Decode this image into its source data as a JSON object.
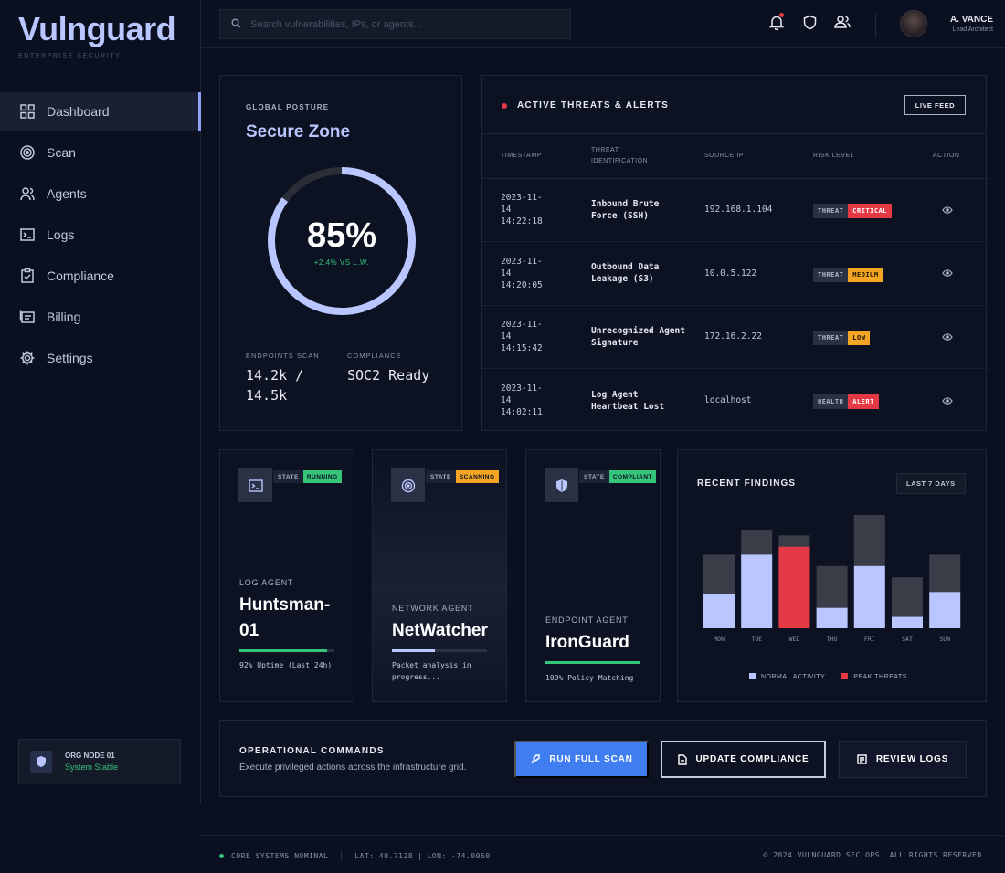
{
  "brand": {
    "name": "Vulnguard",
    "tagline": "ENTERPRISE SECURITY"
  },
  "sidebar": {
    "items": [
      {
        "label": "Dashboard",
        "icon": "grid-icon",
        "active": true
      },
      {
        "label": "Scan",
        "icon": "radar-icon"
      },
      {
        "label": "Agents",
        "icon": "agents-icon"
      },
      {
        "label": "Logs",
        "icon": "terminal-icon"
      },
      {
        "label": "Compliance",
        "icon": "clipboard-check-icon"
      },
      {
        "label": "Billing",
        "icon": "billing-icon"
      },
      {
        "label": "Settings",
        "icon": "gear-icon"
      }
    ],
    "node": {
      "title": "ORG NODE 01",
      "status": "System Stable"
    }
  },
  "topbar": {
    "search_placeholder": "Search vulnerabilities, IPs, or agents...",
    "user": {
      "name": "A. VANCE",
      "role": "Lead Architect"
    }
  },
  "posture": {
    "label": "GLOBAL POSTURE",
    "title": "Secure Zone",
    "score": "85%",
    "score_fraction": 0.85,
    "delta": "+2.4% VS L.W.",
    "endpoints_label": "ENDPOINTS SCAN",
    "endpoints_value_line1": "14.2k /",
    "endpoints_value_line2": "14.5k",
    "compliance_label": "COMPLIANCE",
    "compliance_value": "SOC2 Ready"
  },
  "threats": {
    "title": "ACTIVE THREATS & ALERTS",
    "live_feed": "LIVE FEED",
    "columns": [
      "TIMESTAMP",
      "THREAT IDENTIFICATION",
      "SOURCE IP",
      "RISK LEVEL",
      "ACTION"
    ],
    "rows": [
      {
        "date": "2023-11-",
        "day": "14",
        "time": "14:22:18",
        "threat": "Inbound Brute Force (SSH)",
        "ip": "192.168.1.104",
        "kind": "THREAT",
        "level": "CRITICAL",
        "level_color": "#e63946",
        "level_text": "#ffffff"
      },
      {
        "date": "2023-11-",
        "day": "14",
        "time": "14:20:05",
        "threat": "Outbound Data Leakage (S3)",
        "ip": "10.0.5.122",
        "kind": "THREAT",
        "level": "MEDIUM",
        "level_color": "#f5a524",
        "level_text": "#1a1405"
      },
      {
        "date": "2023-11-",
        "day": "14",
        "time": "14:15:42",
        "threat": "Unrecognized Agent Signature",
        "ip": "172.16.2.22",
        "kind": "THREAT",
        "level": "LOW",
        "level_color": "#f5a524",
        "level_text": "#1a1405"
      },
      {
        "date": "2023-11-",
        "day": "14",
        "time": "14:02:11",
        "threat": "Log Agent Heartbeat Lost",
        "ip": "localhost",
        "kind": "HEALTH",
        "level": "ALERT",
        "level_color": "#e63946",
        "level_text": "#ffffff"
      }
    ]
  },
  "agents": [
    {
      "type": "LOG AGENT",
      "name_line1": "Huntsman-",
      "name_line2": "01",
      "state_label": "STATE",
      "state": "RUNNING",
      "state_color": "#35c479",
      "progress": 0.92,
      "bar_color": "#35c479",
      "note": "92% Uptime (Last 24h)",
      "icon": "terminal-icon"
    },
    {
      "type": "NETWORK AGENT",
      "name_line1": "NetWatcher",
      "name_line2": "",
      "state_label": "STATE",
      "state": "SCANNING",
      "state_color": "#f5a524",
      "progress": 0.45,
      "bar_color": "#b9c6ff",
      "note": "Packet analysis in progress...",
      "icon": "radar-icon"
    },
    {
      "type": "ENDPOINT AGENT",
      "name_line1": "IronGuard",
      "name_line2": "",
      "state_label": "STATE",
      "state": "COMPLIANT",
      "state_color": "#35c479",
      "progress": 1.0,
      "bar_color": "#35c479",
      "note": "100% Policy Matching",
      "icon": "shield-icon"
    }
  ],
  "findings": {
    "title": "RECENT FINDINGS",
    "range": "LAST 7 DAYS"
  },
  "chart_data": {
    "type": "bar",
    "title": "RECENT FINDINGS",
    "categories": [
      "MON",
      "TUE",
      "WED",
      "THU",
      "FRI",
      "SAT",
      "SUN"
    ],
    "series": [
      {
        "name": "NORMAL ACTIVITY",
        "values": [
          30,
          65,
          0,
          18,
          55,
          10,
          32
        ],
        "color": "#b9c6ff"
      },
      {
        "name": "PEAK THREATS",
        "values": [
          0,
          0,
          72,
          0,
          0,
          0,
          0
        ],
        "color": "#e63946"
      }
    ],
    "totals": [
      65,
      87,
      82,
      55,
      100,
      45,
      65
    ],
    "total_color": "#3a3d47",
    "ylim": [
      0,
      100
    ],
    "legend": "bottom"
  },
  "commands": {
    "title": "OPERATIONAL COMMANDS",
    "subtitle": "Execute privileged actions across the infrastructure grid.",
    "run_scan": "RUN FULL SCAN",
    "update_compliance": "UPDATE COMPLIANCE",
    "review_logs": "REVIEW LOGS"
  },
  "footer": {
    "status": "CORE SYSTEMS NOMINAL",
    "lat": "LAT: 40.7128",
    "lon": "LON: -74.0060",
    "copyright": "© 2024 VULNGUARD SEC OPS. ALL RIGHTS RESERVED."
  }
}
